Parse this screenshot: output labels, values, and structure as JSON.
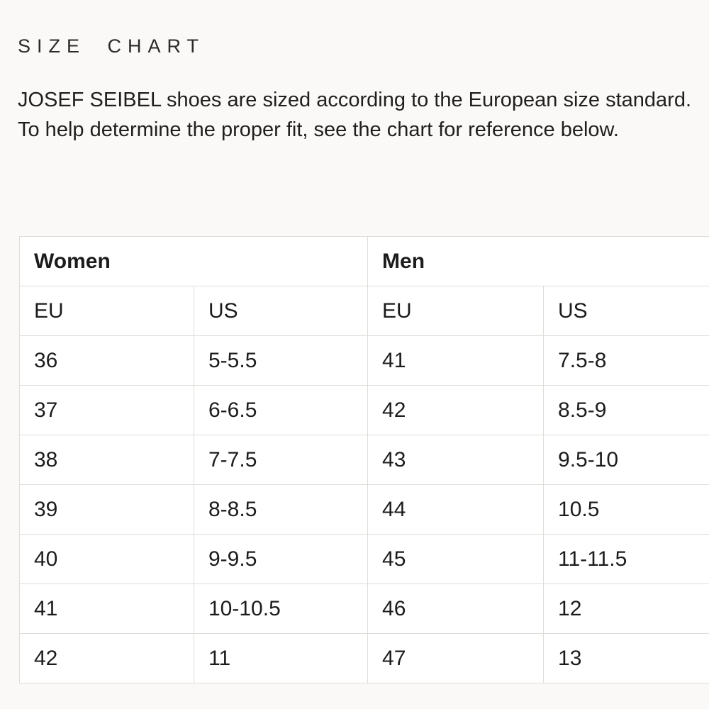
{
  "header": {
    "title": "SIZE CHART",
    "description": "JOSEF SEIBEL shoes are sized according to the European size standard. To help determine the proper fit, see the chart for reference below."
  },
  "size_table": {
    "group_headers": [
      "Women",
      "Men"
    ],
    "column_headers": [
      "EU",
      "US",
      "EU",
      "US"
    ],
    "rows": [
      [
        "36",
        "5-5.5",
        "41",
        "7.5-8"
      ],
      [
        "37",
        "6-6.5",
        "42",
        "8.5-9"
      ],
      [
        "38",
        "7-7.5",
        "43",
        "9.5-10"
      ],
      [
        "39",
        "8-8.5",
        "44",
        "10.5"
      ],
      [
        "40",
        "9-9.5",
        "45",
        "11-11.5"
      ],
      [
        "41",
        "10-10.5",
        "46",
        "12"
      ],
      [
        "42",
        "11",
        "47",
        "13"
      ]
    ]
  },
  "colors": {
    "page_background": "#fbf9f7",
    "cell_background": "#ffffff",
    "border": "#e0ddd8",
    "text": "#1c1c1c"
  }
}
